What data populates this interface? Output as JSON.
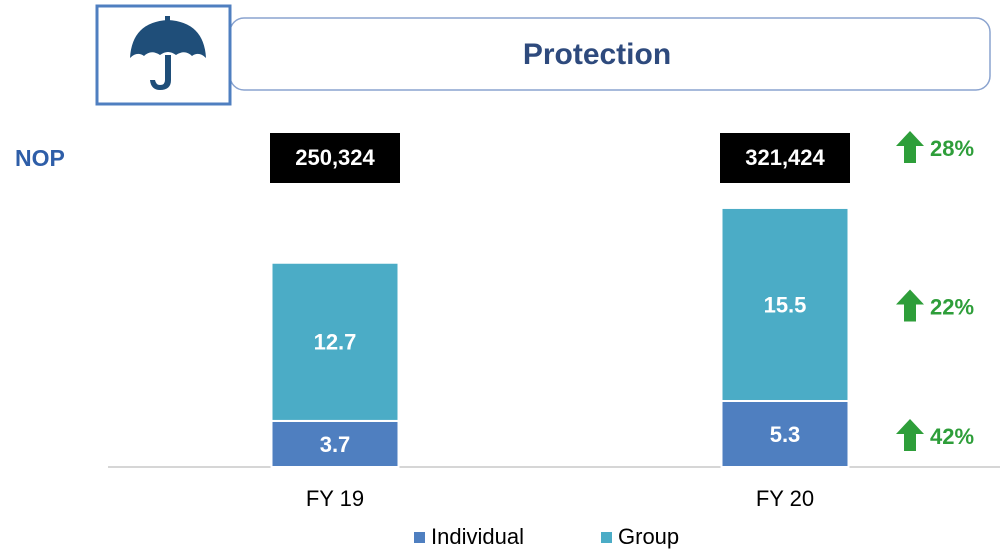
{
  "chart_data": {
    "type": "bar",
    "stacked": true,
    "title": "Protection",
    "categories": [
      "FY 19",
      "FY 20"
    ],
    "series": [
      {
        "name": "Individual",
        "color": "#4f7fc0",
        "values": [
          3.7,
          5.3
        ],
        "growth": 42,
        "growth_label": "42%"
      },
      {
        "name": "Group",
        "color": "#4bacc6",
        "values": [
          12.7,
          15.5
        ],
        "growth": 22,
        "growth_label": "22%"
      }
    ],
    "nop": {
      "label": "NOP",
      "values": [
        250324,
        321424
      ],
      "value_labels": [
        "250,324",
        "321,424"
      ],
      "growth": 28,
      "growth_label": "28%"
    },
    "ylim": [
      0,
      22
    ]
  }
}
